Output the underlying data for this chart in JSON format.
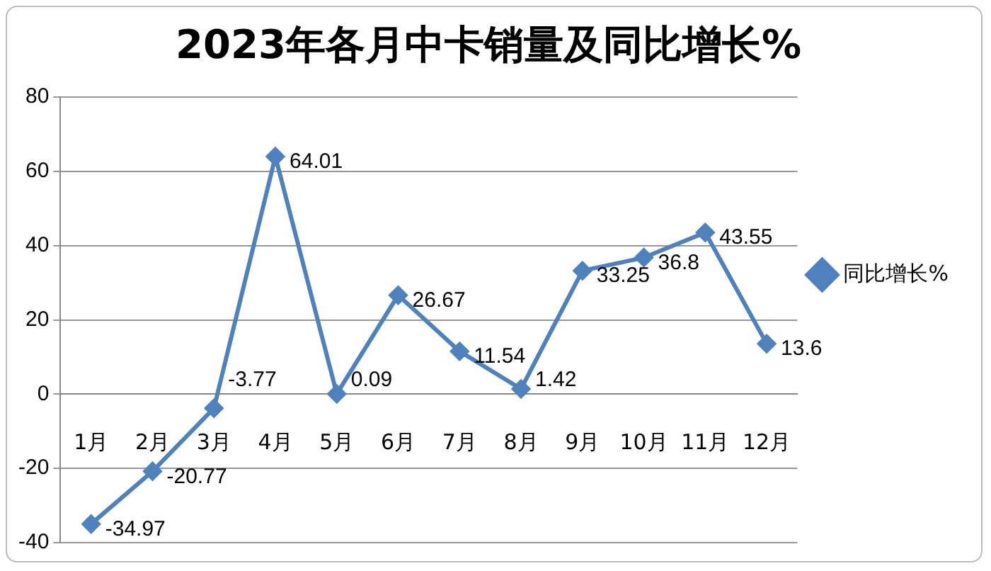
{
  "chart_data": {
    "type": "line",
    "title": "2023年各月中卡销量及同比增长%",
    "categories": [
      "1月",
      "2月",
      "3月",
      "4月",
      "5月",
      "6月",
      "7月",
      "8月",
      "9月",
      "10月",
      "11月",
      "12月"
    ],
    "series": [
      {
        "name": "同比增长%",
        "color": "#4f81bd",
        "values": [
          -34.97,
          -20.77,
          -3.77,
          64.01,
          0.09,
          26.67,
          11.54,
          1.42,
          33.25,
          36.8,
          43.55,
          13.6
        ]
      }
    ],
    "ylim": [
      -40,
      80
    ],
    "yticks": [
      -40,
      -20,
      0,
      20,
      40,
      60,
      80
    ],
    "grid": "y",
    "legend": "right",
    "marker": "diamond",
    "data_labels": true
  }
}
